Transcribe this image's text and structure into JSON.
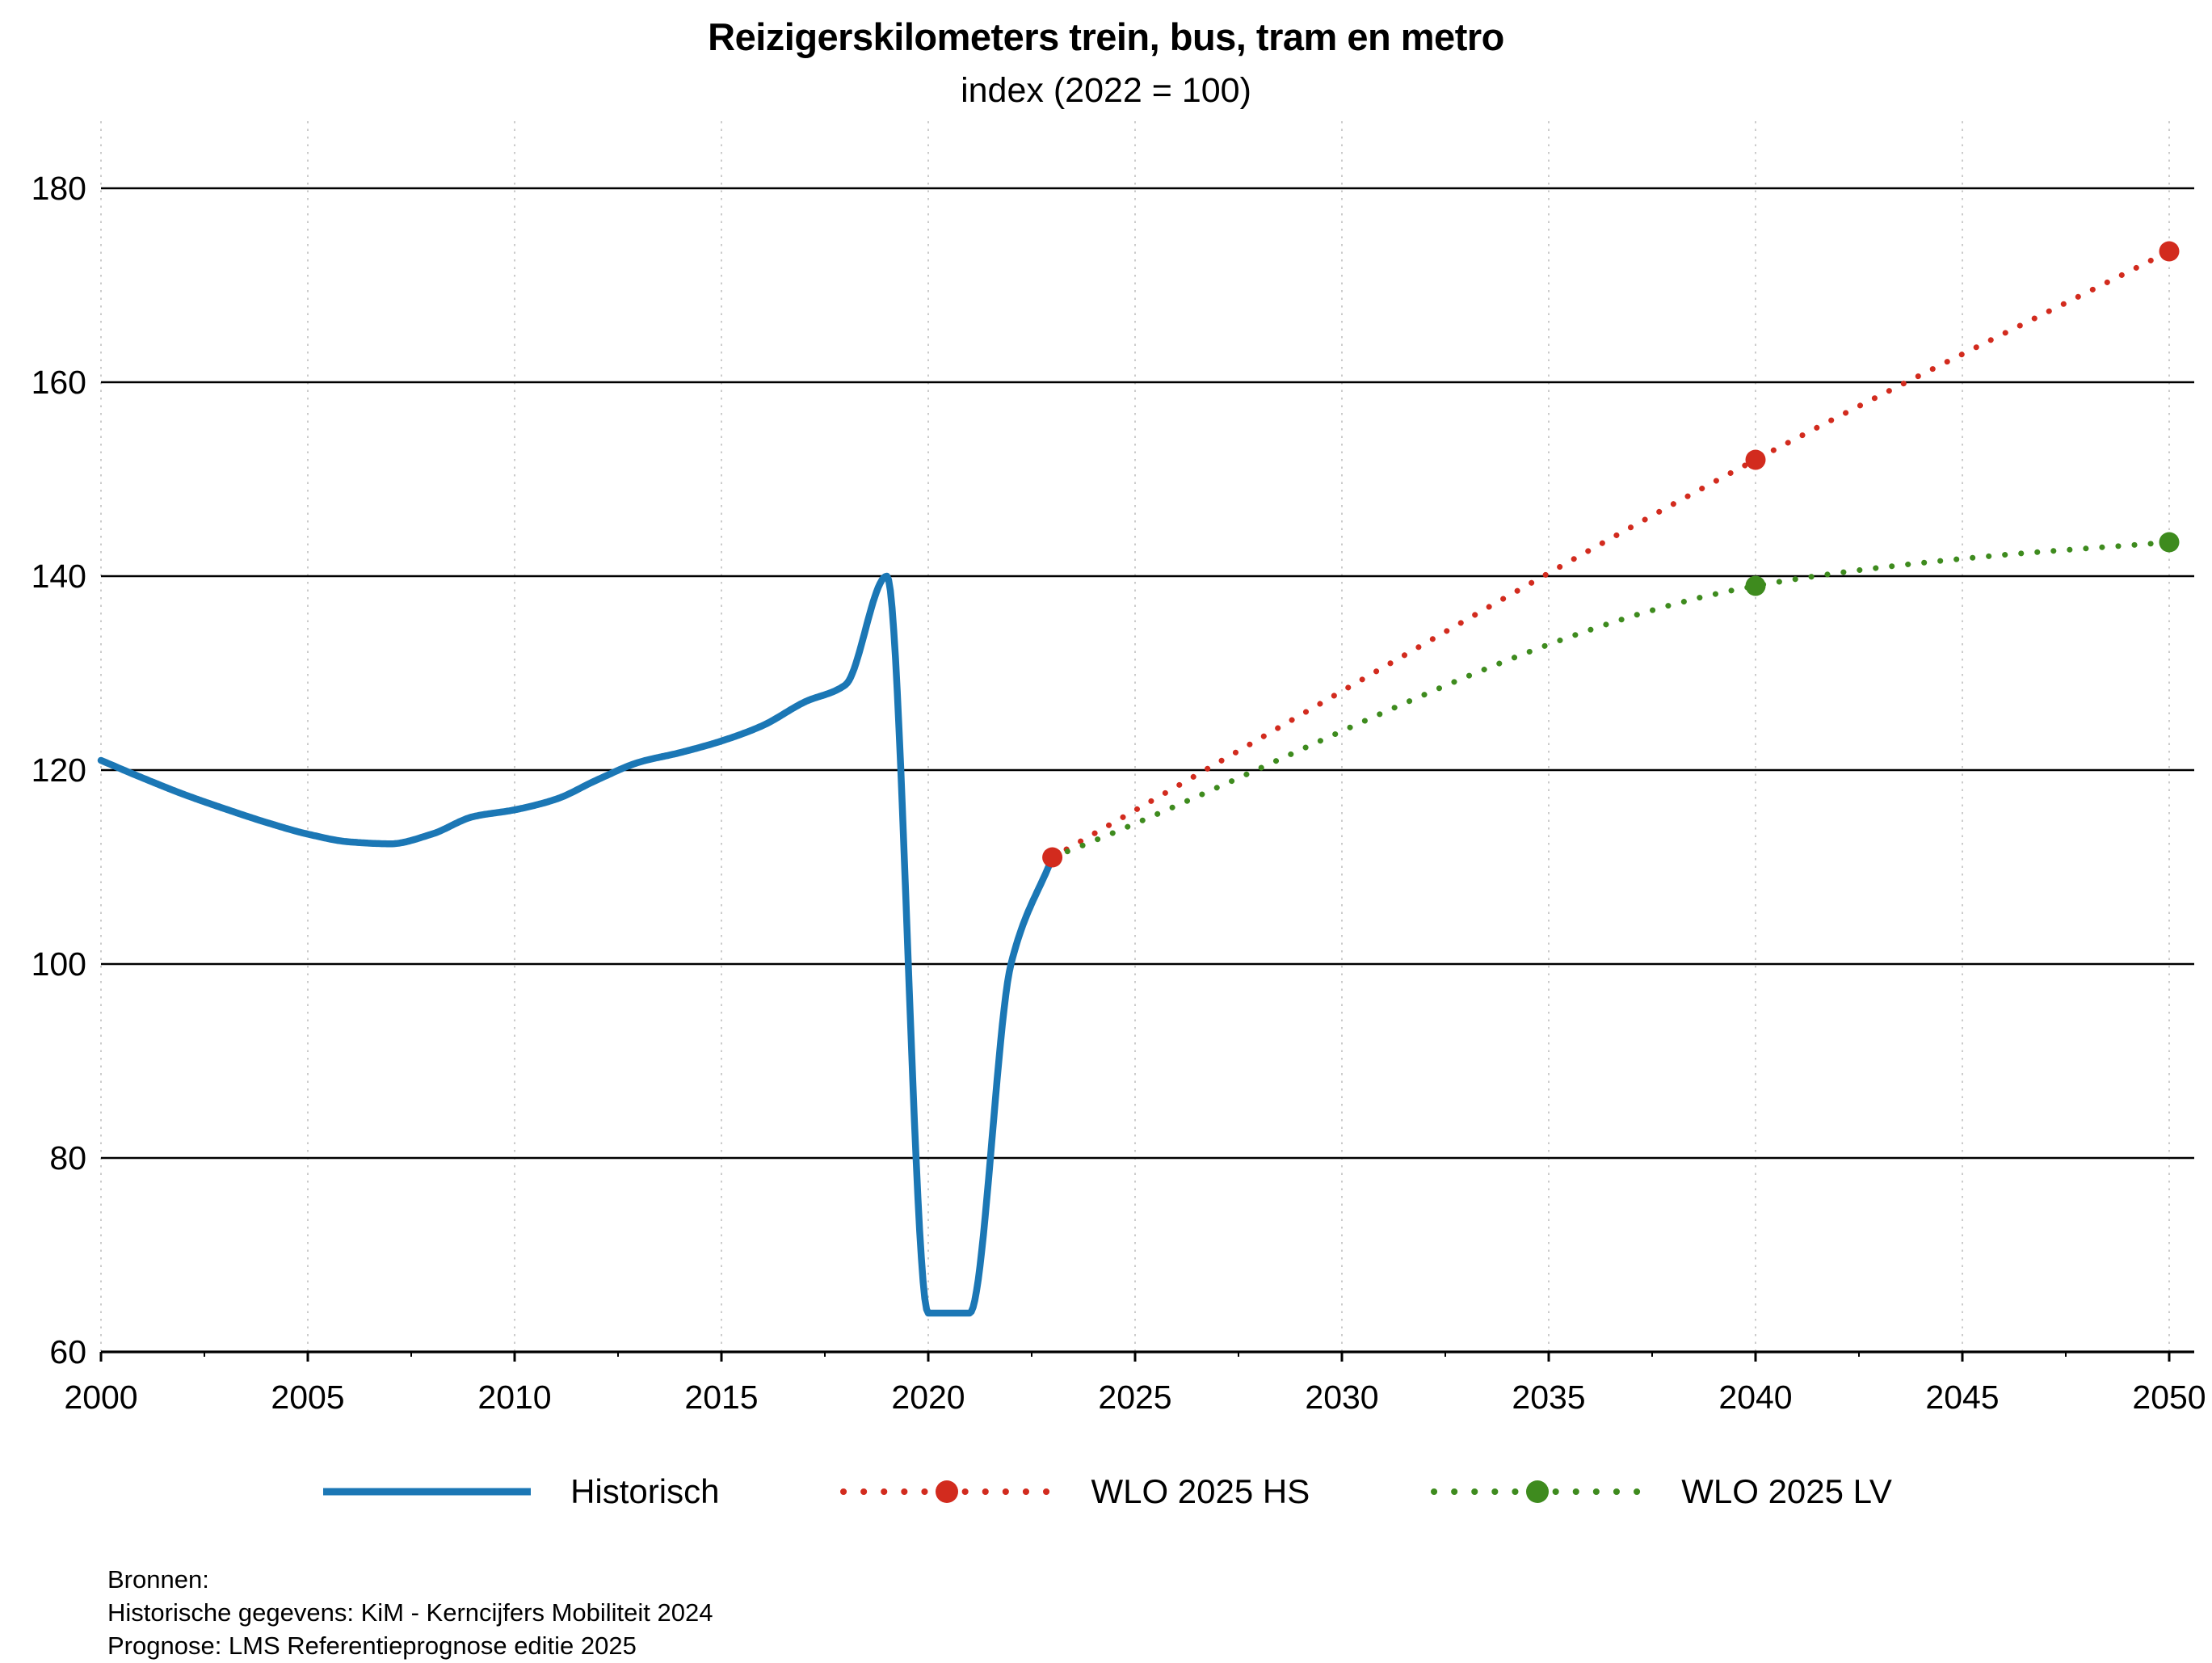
{
  "title": "Reizigerskilometers trein, bus, tram en metro",
  "subtitle": "index (2022 = 100)",
  "colors": {
    "historical": "#1b77b5",
    "hs": "#d22b1e",
    "lv": "#3e8b1e",
    "gridline": "#000000",
    "year_gridline": "#cbcbcb"
  },
  "chart_data": {
    "type": "line",
    "title": "Reizigerskilometers trein, bus, tram en metro",
    "subtitle": "index (2022 = 100)",
    "xlabel": "",
    "ylabel": "index (2022 = 100)",
    "xlim": [
      2000,
      2050
    ],
    "ylim": [
      60,
      180
    ],
    "xticks": [
      2000,
      2005,
      2010,
      2015,
      2020,
      2025,
      2030,
      2035,
      2040,
      2045,
      2050
    ],
    "yticks": [
      60,
      80,
      100,
      120,
      140,
      160,
      180
    ],
    "grid": "horizontal-solid-plus-vertical-dotted",
    "legend_position": "bottom",
    "series": [
      {
        "name": "Historisch",
        "style": "solid",
        "color_key": "historical",
        "x": [
          2000,
          2001,
          2002,
          2003,
          2004,
          2005,
          2006,
          2007,
          2008,
          2009,
          2010,
          2011,
          2012,
          2013,
          2014,
          2015,
          2016,
          2017,
          2018,
          2019,
          2020,
          2021,
          2022,
          2023
        ],
        "values": [
          121,
          119.2,
          117.5,
          116,
          114.6,
          113.4,
          112.6,
          112.4,
          113.4,
          115.2,
          115.9,
          117,
          119,
          120.8,
          121.8,
          123,
          124.6,
          127,
          128.8,
          140,
          64,
          64,
          100,
          111
        ],
        "markers": []
      },
      {
        "name": "WLO 2025 HS",
        "style": "dotted",
        "color_key": "hs",
        "x": [
          2023,
          2040,
          2050
        ],
        "values": [
          111,
          152,
          173.5
        ],
        "markers": [
          {
            "x": 2023,
            "value": 111
          },
          {
            "x": 2040,
            "value": 152
          },
          {
            "x": 2050,
            "value": 173.5
          }
        ]
      },
      {
        "name": "WLO 2025 LV",
        "style": "dotted",
        "color_key": "lv",
        "x": [
          2023,
          2040,
          2045,
          2050
        ],
        "values": [
          111,
          139,
          141.8,
          143.5
        ],
        "markers": [
          {
            "x": 2040,
            "value": 139
          },
          {
            "x": 2050,
            "value": 143.5
          }
        ]
      }
    ]
  },
  "legend": {
    "items": [
      {
        "label": "Historisch",
        "style": "solid",
        "color_key": "historical"
      },
      {
        "label": "WLO 2025 HS",
        "style": "dotted",
        "color_key": "hs"
      },
      {
        "label": "WLO 2025 LV",
        "style": "dotted",
        "color_key": "lv"
      }
    ]
  },
  "sources": {
    "lines": [
      "Bronnen:",
      "Historische gegevens: KiM - Kerncijfers Mobiliteit 2024",
      "Prognose: LMS Referentieprognose editie 2025"
    ]
  }
}
